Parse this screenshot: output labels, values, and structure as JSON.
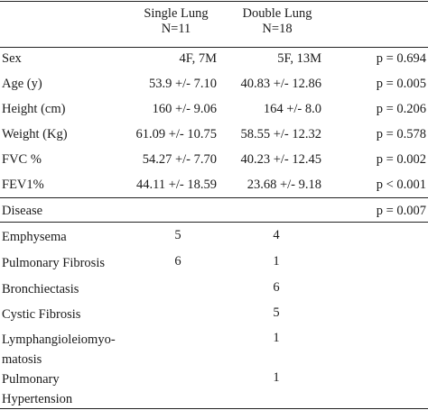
{
  "header": {
    "single_title": "Single Lung",
    "single_n": "N=11",
    "double_title": "Double Lung",
    "double_n": "N=18"
  },
  "demographics": [
    {
      "label": "Sex",
      "single": "4F, 7M",
      "double": "5F, 13M",
      "p": "p = 0.694"
    },
    {
      "label": "Age (y)",
      "single": "53.9 +/- 7.10",
      "double": "40.83 +/- 12.86",
      "p": "p = 0.005"
    },
    {
      "label": "Height (cm)",
      "single": "160 +/- 9.06",
      "double": "164 +/- 8.0",
      "p": "p = 0.206"
    },
    {
      "label": "Weight (Kg)",
      "single": "61.09 +/- 10.75",
      "double": "58.55 +/- 12.32",
      "p": "p = 0.578"
    },
    {
      "label": "FVC %",
      "single": "54.27 +/- 7.70",
      "double": "40.23 +/- 12.45",
      "p": "p = 0.002"
    },
    {
      "label": "FEV1%",
      "single": "44.11 +/- 18.59",
      "double": "23.68 +/- 9.18",
      "p": "p < 0.001"
    }
  ],
  "disease": {
    "label": "Disease",
    "p": "p = 0.007"
  },
  "diseases": [
    {
      "label_lines": [
        "Emphysema"
      ],
      "single": "5",
      "double": "4"
    },
    {
      "label_lines": [
        "Pulmonary Fibrosis"
      ],
      "single": "6",
      "double": "1"
    },
    {
      "label_lines": [
        "Bronchiectasis"
      ],
      "single": "",
      "double": "6"
    },
    {
      "label_lines": [
        "Cystic Fibrosis"
      ],
      "single": "",
      "double": "5"
    },
    {
      "label_lines": [
        "Lymphangioleiomyo-",
        "matosis"
      ],
      "single": "",
      "double": "1"
    },
    {
      "label_lines": [
        "Pulmonary",
        "Hypertension"
      ],
      "single": "",
      "double": "1"
    }
  ]
}
